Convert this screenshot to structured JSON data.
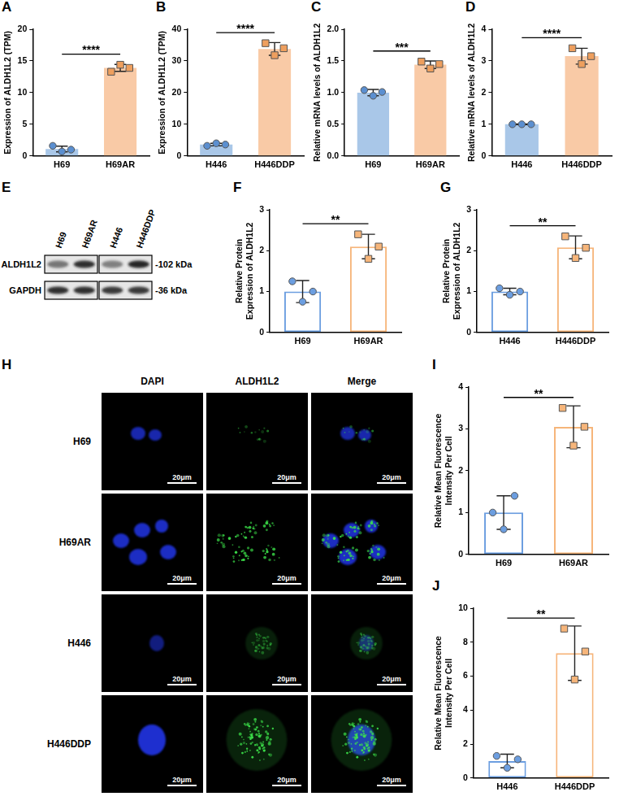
{
  "chart_data": [
    {
      "panel": "A",
      "type": "bar",
      "y_label": "Expression of ALDH1L2 (TPM)",
      "categories": [
        "H69",
        "H69AR"
      ],
      "values": [
        1.1,
        13.9
      ],
      "error": [
        0.45,
        0.55
      ],
      "points": {
        "values": [
          [
            1.6,
            0.7,
            1.0
          ],
          [
            13.3,
            14.4,
            13.9
          ]
        ],
        "colors": [
          "#5b8fd0",
          "#ee9f5e"
        ]
      },
      "colors": [
        "#a9c7e8",
        "#f9caa6"
      ],
      "annotation": "****",
      "ylim": [
        0,
        20
      ],
      "yticks": [
        0,
        5,
        10,
        15,
        20
      ],
      "grid": false
    },
    {
      "panel": "B",
      "type": "bar",
      "y_label": "Expression of ALDH1L2 (TPM)",
      "categories": [
        "H446",
        "H446DDP"
      ],
      "values": [
        3.6,
        33.8
      ],
      "error": [
        0.4,
        2.0
      ],
      "points": {
        "values": [
          [
            3.2,
            4.0,
            3.6
          ],
          [
            35.6,
            31.8,
            34.0
          ]
        ],
        "colors": [
          "#5b8fd0",
          "#ee9f5e"
        ]
      },
      "colors": [
        "#a9c7e8",
        "#f9caa6"
      ],
      "annotation": "****",
      "ylim": [
        0,
        40
      ],
      "yticks": [
        0,
        10,
        20,
        30,
        40
      ],
      "grid": false
    },
    {
      "panel": "C",
      "type": "bar",
      "y_label": "Relative mRNA levels of ALDH1L2",
      "categories": [
        "H69",
        "H69AR"
      ],
      "values": [
        1.0,
        1.44
      ],
      "error": [
        0.05,
        0.06
      ],
      "points": {
        "values": [
          [
            1.04,
            0.95,
            1.01
          ],
          [
            1.49,
            1.38,
            1.45
          ]
        ],
        "colors": [
          "#5b8fd0",
          "#ee9f5e"
        ]
      },
      "colors": [
        "#a9c7e8",
        "#f9caa6"
      ],
      "annotation": "***",
      "ylim": [
        0,
        2
      ],
      "yticks": [
        {
          "value": 0,
          "label": "0.0"
        },
        0.5,
        {
          "value": 1,
          "label": "1.0"
        },
        1.5,
        {
          "value": 2,
          "label": "2.0"
        }
      ],
      "grid": false
    },
    {
      "panel": "D",
      "type": "bar",
      "y_label": "Relative mRNA levels of ALDH1L2",
      "categories": [
        "H446",
        "H446DDP"
      ],
      "values": [
        1.0,
        3.15
      ],
      "error": [
        0.01,
        0.25
      ],
      "points": {
        "values": [
          [
            1.0,
            1.0,
            1.0
          ],
          [
            3.4,
            2.9,
            3.15
          ]
        ],
        "colors": [
          "#5b8fd0",
          "#ee9f5e"
        ]
      },
      "colors": [
        "#a9c7e8",
        "#f9caa6"
      ],
      "annotation": "****",
      "ylim": [
        0,
        4
      ],
      "yticks": [
        0,
        1,
        2,
        3,
        4
      ],
      "grid": false
    },
    {
      "panel": "F",
      "type": "bar",
      "y_label": "Relative Protein Expression of ALDH1L2",
      "categories": [
        "H69",
        "H69AR"
      ],
      "values": [
        1.0,
        2.1
      ],
      "error": [
        0.27,
        0.3
      ],
      "points": {
        "values": [
          [
            1.25,
            0.75,
            1.0
          ],
          [
            2.4,
            1.8,
            2.1
          ]
        ],
        "colors": [
          "#6c9ee0",
          "#f6b57a"
        ]
      },
      "colors": [
        "#6c9ee0",
        "#f6b57a"
      ],
      "line_style": "solid",
      "annotation": "**",
      "ylim": [
        0,
        3
      ],
      "yticks": [
        0,
        1,
        2,
        3
      ],
      "grid": false
    },
    {
      "panel": "G",
      "type": "bar",
      "y_label": "Relative Protein Expression of ALDH1L2",
      "categories": [
        "H446",
        "H446DDP"
      ],
      "values": [
        1.0,
        2.08
      ],
      "error": [
        0.08,
        0.28
      ],
      "points": {
        "values": [
          [
            1.08,
            0.92,
            1.0
          ],
          [
            2.35,
            1.82,
            2.07
          ]
        ],
        "colors": [
          "#6c9ee0",
          "#f6b57a"
        ]
      },
      "colors": [
        "#6c9ee0",
        "#f6b57a"
      ],
      "line_style": "solid",
      "annotation": "**",
      "ylim": [
        0,
        3
      ],
      "yticks": [
        0,
        1,
        2,
        3
      ],
      "grid": false
    },
    {
      "panel": "I",
      "type": "bar",
      "y_label": "Relative Mean Fluorescence Intensity Per Cell",
      "categories": [
        "H69",
        "H69AR"
      ],
      "values": [
        1.0,
        3.05
      ],
      "error": [
        0.4,
        0.5
      ],
      "points": {
        "values": [
          [
            1.0,
            0.6,
            1.4
          ],
          [
            3.5,
            2.6,
            3.05
          ]
        ],
        "colors": [
          "#6c9ee0",
          "#f6b57a"
        ]
      },
      "colors": [
        "#6c9ee0",
        "#f6b57a"
      ],
      "line_style": "solid",
      "annotation": "**",
      "ylim": [
        0,
        4
      ],
      "yticks": [
        0,
        1,
        2,
        3,
        4
      ],
      "grid": false
    },
    {
      "panel": "J",
      "type": "bar",
      "y_label": "Relative Mean Fluorescence Intensity Per Cell",
      "categories": [
        "H446",
        "H446DDP"
      ],
      "values": [
        1.0,
        7.35
      ],
      "error": [
        0.4,
        1.6
      ],
      "points": {
        "values": [
          [
            1.3,
            0.6,
            1.1
          ],
          [
            8.8,
            5.8,
            7.45
          ]
        ],
        "colors": [
          "#6c9ee0",
          "#f6b57a"
        ]
      },
      "colors": [
        "#6c9ee0",
        "#f6b57a"
      ],
      "line_style": "solid",
      "annotation": "**",
      "ylim": [
        0,
        10
      ],
      "yticks": [
        0,
        2,
        4,
        6,
        8,
        10
      ],
      "grid": false
    }
  ],
  "blot": {
    "panel": "E",
    "lanes": [
      "H69",
      "H69AR",
      "H446",
      "H446DDP"
    ],
    "rows": [
      {
        "protein": "ALDH1L2",
        "size": "-102 kDa"
      },
      {
        "protein": "GAPDH",
        "size": "-36 kDa"
      }
    ]
  },
  "images": {
    "panel": "H",
    "columns": [
      "DAPI",
      "ALDH1L2",
      "Merge"
    ],
    "rows": [
      "H69",
      "H69AR",
      "H446",
      "H446DDP"
    ],
    "scale_bar": "20μm"
  }
}
